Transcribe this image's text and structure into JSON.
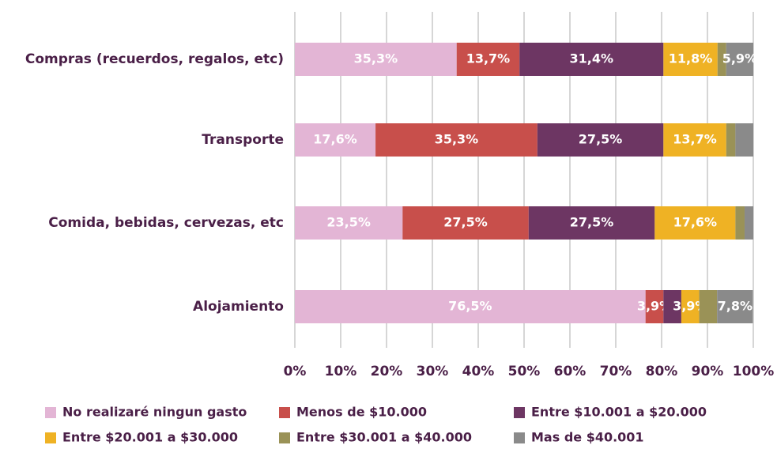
{
  "chart_data": {
    "type": "stacked_barh",
    "categories": [
      "Compras (recuerdos, regalos, etc)",
      "Transporte",
      "Comida, bebidas, cervezas, etc",
      "Alojamiento"
    ],
    "series": [
      {
        "name": "No realizaré ningun gasto",
        "color": "#e3b5d5",
        "values": [
          35.3,
          17.6,
          23.5,
          76.5
        ],
        "value_labels": [
          "35,3%",
          "17,6%",
          "23,5%",
          "76,5%"
        ]
      },
      {
        "name": "Menos de $10.000",
        "color": "#c84f4b",
        "values": [
          13.7,
          35.3,
          27.5,
          3.9
        ],
        "value_labels": [
          "13,7%",
          "35,3%",
          "27,5%",
          "3,9%"
        ]
      },
      {
        "name": "Entre $10.001 a $20.000",
        "color": "#6d3663",
        "values": [
          31.4,
          27.5,
          27.5,
          3.9
        ],
        "value_labels": [
          "31,4%",
          "27,5%",
          "27,5%",
          null
        ]
      },
      {
        "name": "Entre $20.001 a $30.000",
        "color": "#efb224",
        "values": [
          11.8,
          13.7,
          17.6,
          3.9
        ],
        "value_labels": [
          "11,8%",
          "13,7%",
          "17,6%",
          "3,9%"
        ]
      },
      {
        "name": "Entre $30.001 a $40.000",
        "color": "#9a9257",
        "values": [
          1.9,
          2.0,
          2.0,
          3.9
        ],
        "value_labels": [
          null,
          null,
          null,
          null
        ]
      },
      {
        "name": "Mas de $40.001",
        "color": "#8a8a8a",
        "values": [
          5.9,
          3.9,
          1.9,
          7.8
        ],
        "value_labels": [
          "5,9%",
          null,
          null,
          "7,8%"
        ]
      }
    ],
    "xlim": [
      0,
      100
    ],
    "xticks": [
      {
        "value": 0,
        "label": "0%"
      },
      {
        "value": 10,
        "label": "10%"
      },
      {
        "value": 20,
        "label": "20%"
      },
      {
        "value": 30,
        "label": "30%"
      },
      {
        "value": 40,
        "label": "40%"
      },
      {
        "value": 50,
        "label": "50%"
      },
      {
        "value": 60,
        "label": "60%"
      },
      {
        "value": 70,
        "label": "70%"
      },
      {
        "value": 80,
        "label": "80%"
      },
      {
        "value": 90,
        "label": "90%"
      },
      {
        "value": 100,
        "label": "100%"
      }
    ],
    "grid": true
  }
}
